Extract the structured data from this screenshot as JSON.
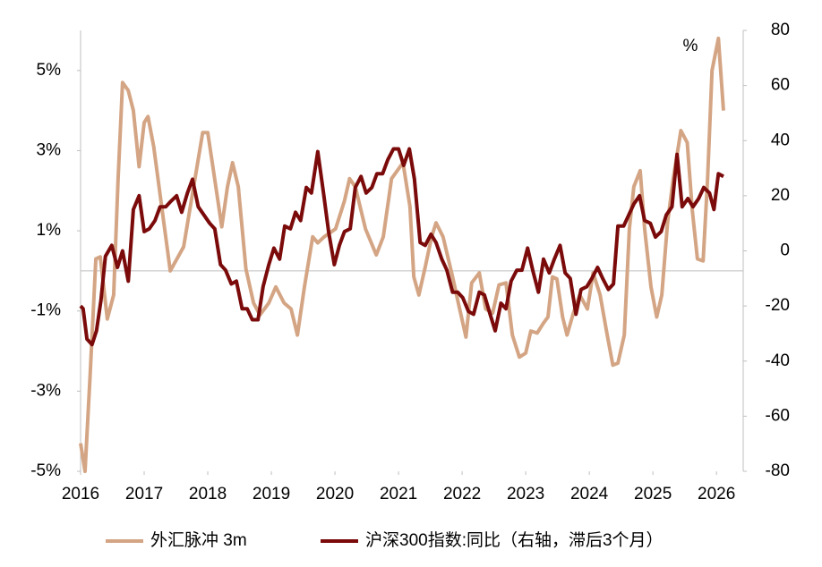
{
  "chart_data": {
    "type": "line",
    "annotation": "%",
    "xlim": [
      2016,
      2026.42
    ],
    "xticks": [
      2016,
      2017,
      2018,
      2019,
      2020,
      2021,
      2022,
      2023,
      2024,
      2025,
      2026
    ],
    "ylim": [
      -5,
      6
    ],
    "yticks": [
      {
        "value": -5,
        "label": "-5%"
      },
      {
        "value": -3,
        "label": "-3%"
      },
      {
        "value": -1,
        "label": "-1%"
      },
      {
        "value": 1,
        "label": "1%"
      },
      {
        "value": 3,
        "label": "3%"
      },
      {
        "value": 5,
        "label": "5%"
      }
    ],
    "y2lim": [
      -80,
      80
    ],
    "y2ticks": [
      -80,
      -60,
      -40,
      -20,
      0,
      20,
      40,
      60,
      80
    ],
    "zero_line": true,
    "legend": "bottom",
    "series": [
      {
        "name": "外汇脉冲 3m",
        "color": "#d4a584",
        "x": [
          2016.0,
          2016.07,
          2016.15,
          2016.24,
          2016.31,
          2016.42,
          2016.52,
          2016.59,
          2016.66,
          2016.75,
          2016.83,
          2016.92,
          2017.0,
          2017.06,
          2017.15,
          2017.41,
          2017.62,
          2017.92,
          2018.0,
          2018.08,
          2018.22,
          2018.31,
          2018.39,
          2018.48,
          2018.6,
          2018.72,
          2018.82,
          2018.96,
          2019.07,
          2019.2,
          2019.31,
          2019.41,
          2019.52,
          2019.65,
          2019.73,
          2019.83,
          2020.01,
          2020.15,
          2020.23,
          2020.32,
          2020.48,
          2020.65,
          2020.76,
          2020.89,
          2021.07,
          2021.18,
          2021.24,
          2021.32,
          2021.42,
          2021.52,
          2021.59,
          2021.7,
          2021.85,
          2021.94,
          2022.06,
          2022.15,
          2022.27,
          2022.37,
          2022.48,
          2022.58,
          2022.69,
          2022.79,
          2022.9,
          2023.0,
          2023.08,
          2023.18,
          2023.28,
          2023.35,
          2023.42,
          2023.49,
          2023.58,
          2023.65,
          2023.75,
          2023.85,
          2023.97,
          2024.06,
          2024.17,
          2024.27,
          2024.37,
          2024.45,
          2024.55,
          2024.63,
          2024.7,
          2024.8,
          2024.87,
          2024.97,
          2025.06,
          2025.14,
          2025.23,
          2025.32,
          2025.44,
          2025.54,
          2025.62,
          2025.7,
          2025.79,
          2025.86,
          2025.93,
          2026.03,
          2026.11
        ],
        "values": [
          -4.3,
          -5.0,
          -2.6,
          0.3,
          0.35,
          -1.2,
          -0.6,
          2.3,
          4.7,
          4.5,
          4.0,
          2.6,
          3.7,
          3.85,
          3.1,
          0.0,
          0.6,
          3.45,
          3.45,
          2.6,
          1.1,
          2.1,
          2.7,
          2.1,
          0.05,
          -0.8,
          -1.1,
          -0.8,
          -0.4,
          -0.8,
          -0.95,
          -1.6,
          -0.4,
          0.85,
          0.7,
          0.85,
          1.05,
          1.75,
          2.3,
          2.1,
          1.05,
          0.4,
          0.85,
          2.3,
          2.7,
          1.6,
          -0.15,
          -0.6,
          0.1,
          0.85,
          1.2,
          0.85,
          -0.15,
          -0.8,
          -1.65,
          -0.3,
          -0.05,
          -0.95,
          -1.05,
          -0.35,
          -0.3,
          -1.6,
          -2.15,
          -2.05,
          -1.5,
          -1.55,
          -1.3,
          -1.15,
          -0.15,
          -0.2,
          -1.15,
          -1.6,
          -1.05,
          -0.6,
          -0.95,
          -0.05,
          -0.6,
          -1.5,
          -2.35,
          -2.3,
          -1.6,
          1.05,
          2.1,
          2.5,
          1.05,
          -0.4,
          -1.15,
          -0.6,
          1.2,
          2.3,
          3.5,
          3.2,
          1.5,
          0.3,
          0.25,
          2.3,
          5.0,
          5.8,
          4.0
        ]
      },
      {
        "name": "沪深300指数:同比（右轴，滞后3个月）",
        "color": "#7b0a0a",
        "axis": "y2",
        "x": [
          2016.0,
          2016.04,
          2016.1,
          2016.18,
          2016.25,
          2016.32,
          2016.39,
          2016.49,
          2016.58,
          2016.66,
          2016.75,
          2016.83,
          2016.92,
          2017.0,
          2017.08,
          2017.17,
          2017.25,
          2017.34,
          2017.42,
          2017.51,
          2017.59,
          2017.68,
          2017.76,
          2017.85,
          2017.94,
          2018.03,
          2018.11,
          2018.2,
          2018.28,
          2018.37,
          2018.45,
          2018.54,
          2018.62,
          2018.7,
          2018.79,
          2018.87,
          2018.96,
          2019.04,
          2019.13,
          2019.21,
          2019.3,
          2019.38,
          2019.46,
          2019.55,
          2019.63,
          2019.73,
          2019.82,
          2019.9,
          2019.99,
          2020.07,
          2020.15,
          2020.24,
          2020.32,
          2020.41,
          2020.49,
          2020.58,
          2020.66,
          2020.75,
          2020.83,
          2020.92,
          2021.0,
          2021.08,
          2021.17,
          2021.25,
          2021.34,
          2021.42,
          2021.51,
          2021.59,
          2021.68,
          2021.76,
          2021.85,
          2021.93,
          2022.01,
          2022.1,
          2022.18,
          2022.27,
          2022.35,
          2022.44,
          2022.52,
          2022.61,
          2022.69,
          2022.77,
          2022.86,
          2022.94,
          2023.03,
          2023.11,
          2023.2,
          2023.28,
          2023.37,
          2023.45,
          2023.54,
          2023.62,
          2023.7,
          2023.79,
          2023.87,
          2023.96,
          2024.04,
          2024.13,
          2024.21,
          2024.3,
          2024.38,
          2024.45,
          2024.54,
          2024.62,
          2024.7,
          2024.79,
          2024.87,
          2024.96,
          2025.04,
          2025.13,
          2025.21,
          2025.3,
          2025.38,
          2025.46,
          2025.55,
          2025.63,
          2025.72,
          2025.8,
          2025.89,
          2025.96,
          2026.03,
          2026.11
        ],
        "values": [
          -20,
          -21,
          -32,
          -34,
          -29,
          -18,
          -2,
          2,
          -6,
          0,
          -11,
          15,
          20,
          7,
          8,
          11,
          16,
          16,
          18,
          20,
          14,
          21,
          26,
          16,
          13,
          10,
          8,
          -5,
          -7,
          -12,
          -11,
          -21,
          -21,
          -25,
          -25,
          -13,
          -5,
          1,
          -3,
          9,
          8,
          14,
          11,
          23,
          21,
          36,
          21,
          7,
          -5,
          2,
          7,
          8,
          23,
          27,
          21,
          23,
          28,
          28,
          33,
          37,
          37,
          31,
          37,
          26,
          3,
          2,
          6,
          3,
          -3,
          -7,
          -15,
          -15,
          -17,
          -22,
          -23,
          -15,
          -16,
          -23,
          -29,
          -19,
          -21,
          -11,
          -7,
          -7,
          1,
          -7,
          -15,
          -3,
          -8,
          -3,
          2,
          -8,
          -10,
          -23,
          -14,
          -13,
          -10,
          -6,
          -10,
          -14,
          -12,
          9,
          9,
          13,
          17,
          20,
          11,
          10,
          5,
          7,
          13,
          16,
          35,
          16,
          19,
          16,
          19,
          23,
          21,
          15,
          28,
          27
        ]
      }
    ]
  }
}
